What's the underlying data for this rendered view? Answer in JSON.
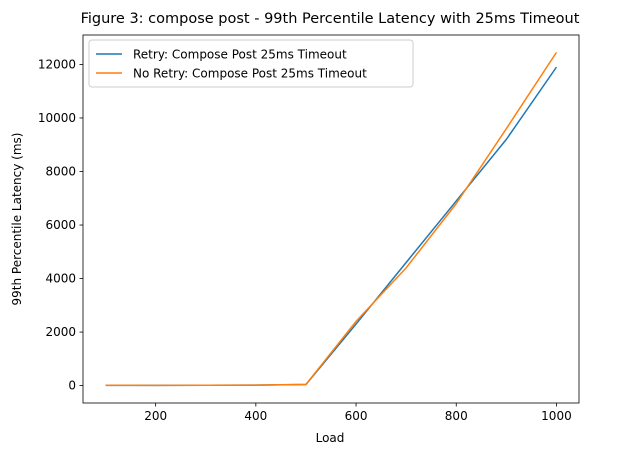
{
  "chart_data": {
    "type": "line",
    "title": "Figure 3: compose post - 99th Percentile Latency with 25ms Timeout",
    "xlabel": "Load",
    "ylabel": "99th Percentile Latency (ms)",
    "xlim": [
      55,
      1045
    ],
    "ylim": [
      -650,
      13100
    ],
    "xticks": [
      200,
      400,
      600,
      800,
      1000
    ],
    "yticks": [
      0,
      2000,
      4000,
      6000,
      8000,
      10000,
      12000
    ],
    "grid": false,
    "legend_position": "upper-left",
    "x": [
      100,
      200,
      300,
      400,
      500,
      600,
      700,
      800,
      900,
      1000
    ],
    "series": [
      {
        "name": "Retry: Compose Post 25ms Timeout",
        "color": "#1f77b4",
        "values": [
          10,
          8,
          12,
          18,
          40,
          2300,
          4600,
          6900,
          9200,
          11900
        ]
      },
      {
        "name": "No Retry: Compose Post 25ms Timeout",
        "color": "#ff7f0e",
        "values": [
          12,
          10,
          14,
          20,
          45,
          2400,
          4400,
          6800,
          9600,
          12450
        ]
      }
    ]
  }
}
